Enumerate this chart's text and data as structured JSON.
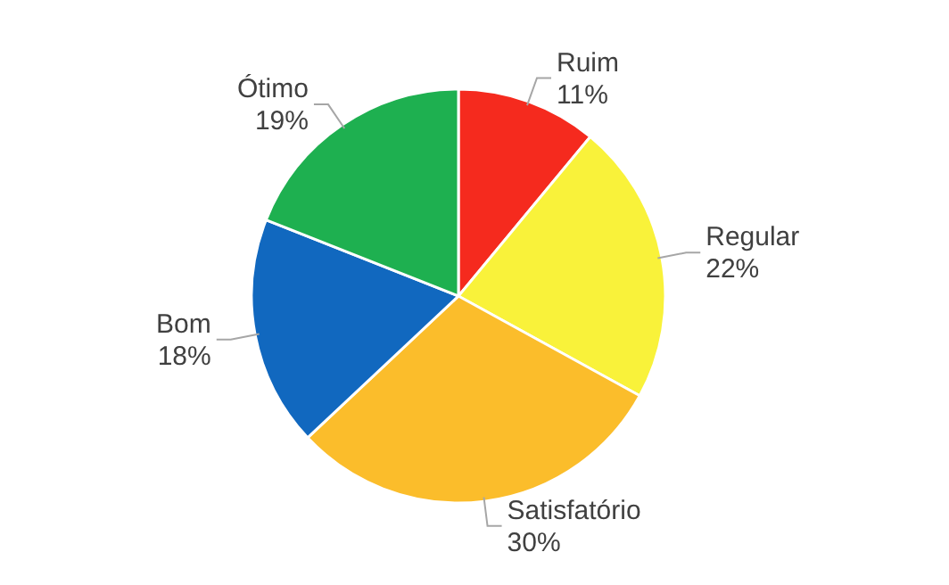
{
  "chart_data": {
    "type": "pie",
    "categories": [
      "Ruim",
      "Regular",
      "Satisfatório",
      "Bom",
      "Ótimo"
    ],
    "values": [
      11,
      22,
      30,
      18,
      19
    ],
    "value_labels": [
      "11%",
      "22%",
      "30%",
      "18%",
      "19%"
    ],
    "colors": [
      "#f52a1e",
      "#f9f23a",
      "#fbbd2b",
      "#1168bf",
      "#1eb050"
    ]
  }
}
